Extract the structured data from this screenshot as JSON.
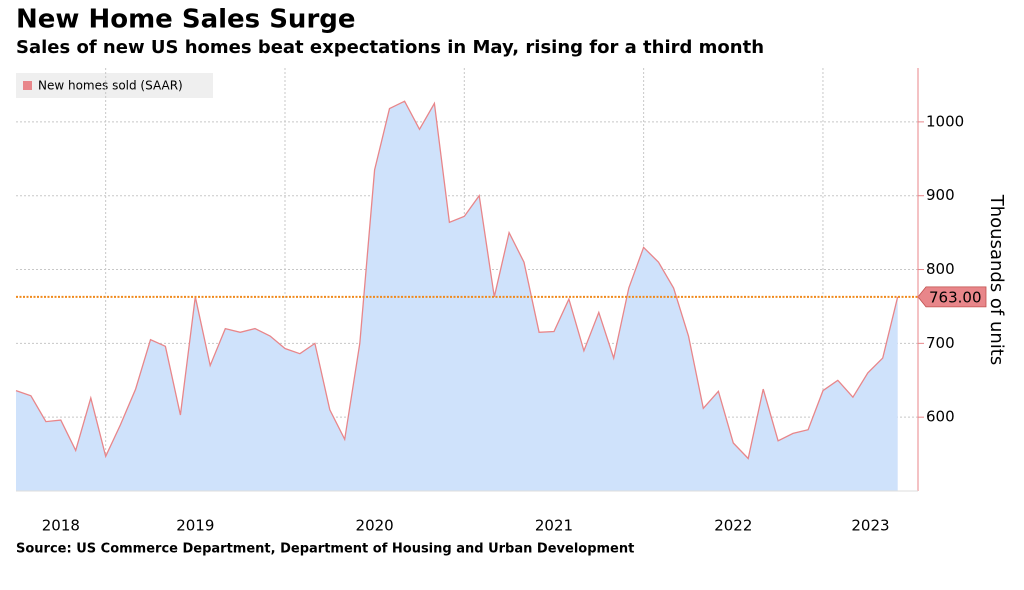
{
  "chart_data": {
    "type": "area",
    "title": "New Home Sales Surge",
    "subtitle": "Sales of new US homes beat expectations in May, rising for a third month",
    "source": "Source: US Commerce Department, Department of Housing and Urban Development",
    "y_axis_label": "Thousands of units",
    "xlim": [
      2018.5,
      2023.53
    ],
    "xticks": [
      {
        "value": 2018,
        "label": "2018"
      },
      {
        "value": 2019,
        "label": "2019"
      },
      {
        "value": 2020,
        "label": "2020"
      },
      {
        "value": 2021,
        "label": "2021"
      },
      {
        "value": 2022,
        "label": "2022"
      },
      {
        "value": 2023,
        "label": "2023"
      }
    ],
    "ylim": [
      500,
      1073
    ],
    "yticks": [
      600,
      700,
      800,
      900,
      1000
    ],
    "grid": true,
    "x": [
      2018.5,
      2018.583,
      2018.667,
      2018.75,
      2018.833,
      2018.917,
      2019.0,
      2019.083,
      2019.167,
      2019.25,
      2019.333,
      2019.417,
      2019.5,
      2019.583,
      2019.667,
      2019.75,
      2019.833,
      2019.917,
      2020.0,
      2020.083,
      2020.167,
      2020.25,
      2020.333,
      2020.417,
      2020.5,
      2020.583,
      2020.667,
      2020.75,
      2020.833,
      2020.917,
      2021.0,
      2021.083,
      2021.167,
      2021.25,
      2021.333,
      2021.417,
      2021.5,
      2021.583,
      2021.667,
      2021.75,
      2021.833,
      2021.917,
      2022.0,
      2022.083,
      2022.167,
      2022.25,
      2022.333,
      2022.417,
      2022.5,
      2022.583,
      2022.667,
      2022.75,
      2022.833,
      2022.917,
      2023.0,
      2023.083,
      2023.167,
      2023.25,
      2023.333,
      2023.417
    ],
    "series": [
      {
        "name": "New homes sold (SAAR)",
        "color": "#e8868a",
        "fill": "#cfe2fb",
        "values": [
          636,
          629,
          594,
          596,
          555,
          626,
          547,
          590,
          638,
          705,
          696,
          603,
          763,
          670,
          720,
          715,
          720,
          710,
          693,
          686,
          700,
          610,
          570,
          700,
          935,
          1018,
          1028,
          990,
          1025,
          864,
          872,
          900,
          763,
          850,
          810,
          715,
          716,
          760,
          690,
          742,
          680,
          775,
          830,
          810,
          775,
          710,
          612,
          635,
          565,
          544,
          638,
          568,
          578,
          583,
          636,
          650,
          627,
          660,
          680,
          763
        ],
        "last_value_label": "763.00",
        "reference_color": "#f08a1c"
      }
    ]
  }
}
